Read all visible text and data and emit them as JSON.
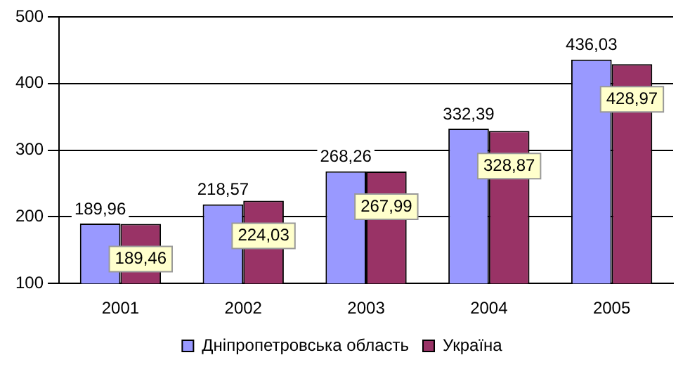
{
  "chart_data": {
    "type": "bar",
    "categories": [
      "2001",
      "2002",
      "2003",
      "2004",
      "2005"
    ],
    "series": [
      {
        "name": "Дніпропетровська область",
        "color": "#9999ff",
        "values": [
          189.96,
          218.57,
          268.26,
          332.39,
          436.03
        ],
        "value_labels": [
          "189,96",
          "218,57",
          "268,26",
          "332,39",
          "436,03"
        ]
      },
      {
        "name": "Україна",
        "color": "#993366",
        "values": [
          189.46,
          224.03,
          267.99,
          328.87,
          428.97
        ],
        "value_labels": [
          "189,46",
          "224,03",
          "267,99",
          "328,87",
          "428,97"
        ]
      }
    ],
    "ylim": [
      100,
      500
    ],
    "yticks": [
      100,
      200,
      300,
      400,
      500
    ],
    "grid": "y",
    "legend": "bottom"
  }
}
